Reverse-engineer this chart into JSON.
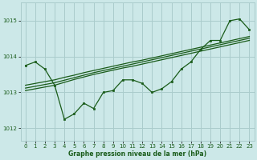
{
  "bg_color": "#cce8e8",
  "grid_color": "#aacccc",
  "line_color": "#1a5c1a",
  "marker_color": "#1a5c1a",
  "xlabel": "Graphe pression niveau de la mer (hPa)",
  "xlim": [
    -0.5,
    23.5
  ],
  "ylim": [
    1011.65,
    1015.5
  ],
  "yticks": [
    1012,
    1013,
    1014,
    1015
  ],
  "xticks": [
    0,
    1,
    2,
    3,
    4,
    5,
    6,
    7,
    8,
    9,
    10,
    11,
    12,
    13,
    14,
    15,
    16,
    17,
    18,
    19,
    20,
    21,
    22,
    23
  ],
  "series": {
    "main": [
      1013.75,
      1013.85,
      1013.65,
      1013.2,
      1012.25,
      1012.4,
      1012.7,
      1012.55,
      1013.0,
      1013.05,
      1013.35,
      1013.35,
      1013.25,
      1013.0,
      1013.1,
      1013.3,
      1013.65,
      1013.85,
      1014.2,
      1014.45,
      1014.45,
      1015.0,
      1015.05,
      1014.75
    ],
    "smooth1": [
      1013.05,
      1013.1,
      1013.15,
      1013.2,
      1013.28,
      1013.36,
      1013.43,
      1013.5,
      1013.56,
      1013.62,
      1013.68,
      1013.73,
      1013.79,
      1013.85,
      1013.91,
      1013.97,
      1014.03,
      1014.09,
      1014.15,
      1014.21,
      1014.27,
      1014.33,
      1014.39,
      1014.45
    ],
    "smooth2": [
      1013.12,
      1013.17,
      1013.22,
      1013.27,
      1013.34,
      1013.41,
      1013.48,
      1013.55,
      1013.61,
      1013.67,
      1013.73,
      1013.79,
      1013.85,
      1013.91,
      1013.97,
      1014.03,
      1014.09,
      1014.15,
      1014.21,
      1014.27,
      1014.33,
      1014.39,
      1014.45,
      1014.51
    ],
    "smooth3": [
      1013.2,
      1013.25,
      1013.3,
      1013.35,
      1013.42,
      1013.48,
      1013.55,
      1013.61,
      1013.67,
      1013.73,
      1013.79,
      1013.85,
      1013.9,
      1013.96,
      1014.02,
      1014.08,
      1014.14,
      1014.2,
      1014.26,
      1014.32,
      1014.38,
      1014.44,
      1014.5,
      1014.56
    ]
  }
}
